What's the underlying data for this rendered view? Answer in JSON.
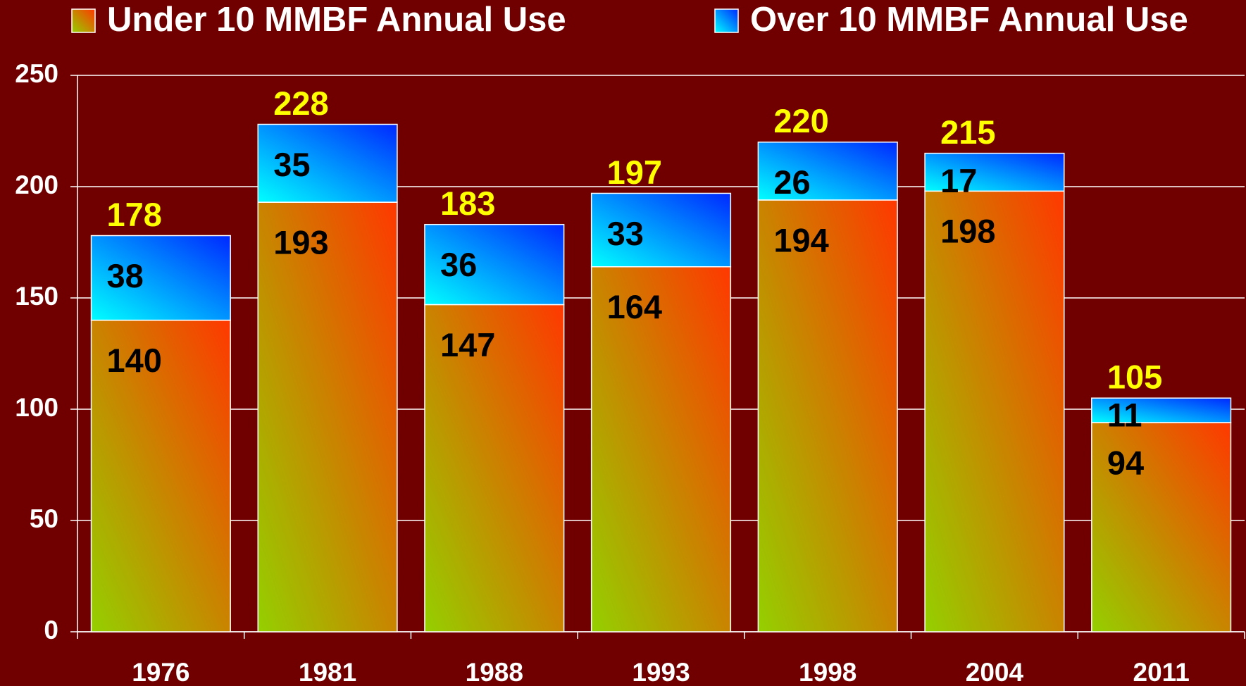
{
  "chart_data": {
    "type": "stacked_bar",
    "categories": [
      "1976",
      "1981",
      "1988",
      "1993",
      "1998",
      "2004",
      "2011"
    ],
    "series": [
      {
        "name": "Under 10 MMBF Annual Use",
        "color": [
          "#94d000",
          "#ff3800"
        ],
        "values": [
          140,
          193,
          147,
          164,
          194,
          198,
          94
        ]
      },
      {
        "name": "Over 10 MMBF Annual Use",
        "color": [
          "#00ffff",
          "#0028ff"
        ],
        "values": [
          38,
          35,
          36,
          33,
          26,
          17,
          11
        ]
      }
    ],
    "totals": [
      178,
      228,
      183,
      197,
      220,
      215,
      105
    ],
    "ylim": [
      0,
      250
    ],
    "yticks": [
      0,
      50,
      100,
      150,
      200,
      250
    ],
    "grid": true
  }
}
